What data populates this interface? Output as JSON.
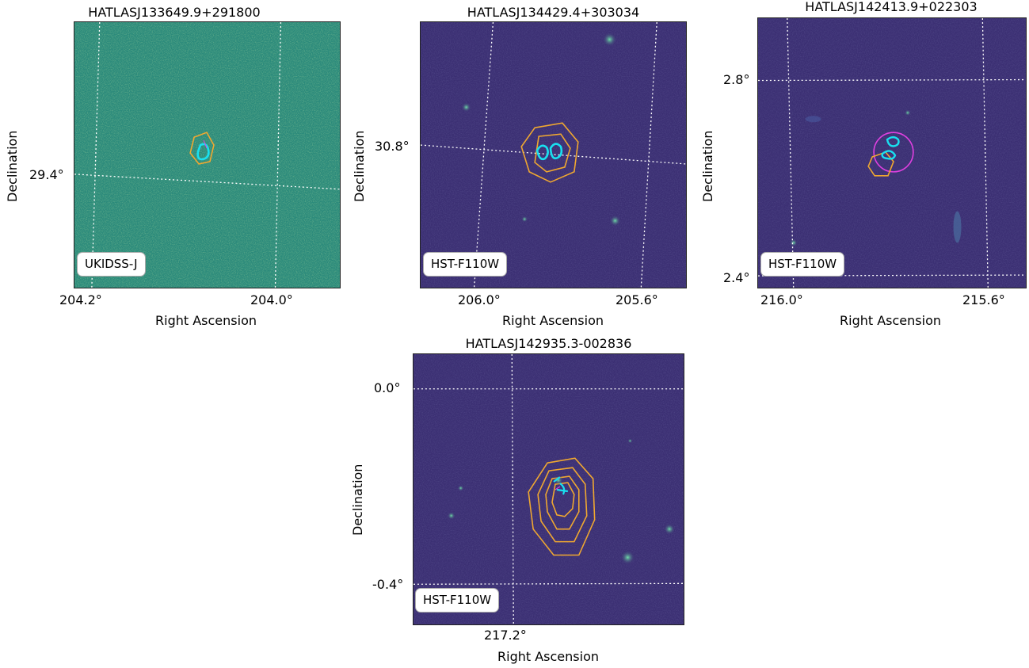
{
  "panels": [
    {
      "title": "HATLASJ133649.9+291800",
      "band": "UKIDSS-J",
      "x_ticks": [
        "204.2°",
        "204.0°"
      ],
      "y_ticks": [
        "29.4°"
      ],
      "x_label": "Right Ascension",
      "y_label": "Declination"
    },
    {
      "title": "HATLASJ134429.4+303034",
      "band": "HST-F110W",
      "x_ticks": [
        "206.0°",
        "205.6°"
      ],
      "y_ticks": [
        "30.8°"
      ],
      "x_label": "Right Ascension",
      "y_label": "Declination"
    },
    {
      "title": "HATLASJ142413.9+022303",
      "band": "HST-F110W",
      "x_ticks": [
        "216.0°",
        "215.6°"
      ],
      "y_ticks": [
        "2.8°",
        "2.4°"
      ],
      "x_label": "Right Ascension",
      "y_label": "Declination"
    },
    {
      "title": "HATLASJ142935.3-002836",
      "band": "HST-F110W",
      "x_ticks": [
        "217.2°"
      ],
      "y_ticks": [
        "0.0°",
        "-0.4°"
      ],
      "x_label": "Right Ascension",
      "y_label": "Declination"
    }
  ],
  "colors": {
    "ukidss_background": "#2a8a7a",
    "hst_background": "#3b2f73",
    "grid": "#ffffff",
    "submm_contours": "#f0a830",
    "radio_contours": "#19e0f0",
    "aperture": "#e040e0"
  }
}
